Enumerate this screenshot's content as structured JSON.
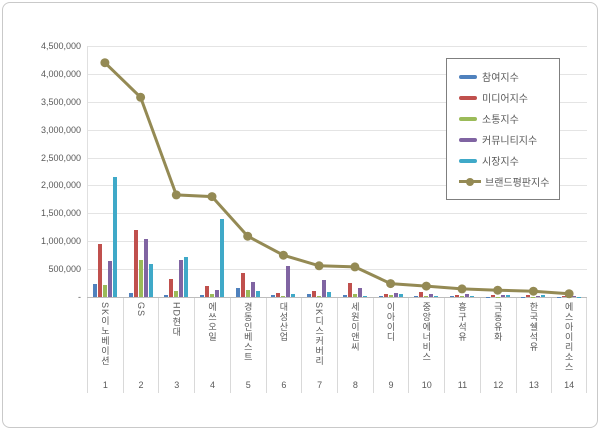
{
  "chart_data": {
    "type": "combo-bar-line",
    "title": "",
    "grid": true,
    "legend_position": "top-right",
    "categories": [
      "SK이노베이션",
      "GS",
      "HD현대",
      "에쓰오일",
      "경동인베스트",
      "대성산업",
      "SK디스커버리",
      "세원이앤씨",
      "이아이디",
      "중앙에너비스",
      "흥구석유",
      "극동유화",
      "한국쉘석유",
      "에스아이리소스"
    ],
    "ranks": [
      "1",
      "2",
      "3",
      "4",
      "5",
      "6",
      "7",
      "8",
      "9",
      "10",
      "11",
      "12",
      "13",
      "14"
    ],
    "bar_series": [
      {
        "key": "participation-index",
        "name": "참여지수",
        "color": "#4F81BD",
        "values": [
          230000,
          80000,
          40000,
          40000,
          160000,
          30000,
          50000,
          40000,
          15000,
          10000,
          10000,
          8000,
          8000,
          5000
        ]
      },
      {
        "key": "media-index",
        "name": "미디어지수",
        "color": "#C0504D",
        "values": [
          950000,
          1210000,
          320000,
          190000,
          430000,
          80000,
          100000,
          245000,
          60000,
          95000,
          35000,
          40000,
          30000,
          25000
        ]
      },
      {
        "key": "communication-index",
        "name": "소통지수",
        "color": "#9BBB59",
        "values": [
          220000,
          660000,
          100000,
          50000,
          130000,
          20000,
          20000,
          60000,
          40000,
          15000,
          15000,
          7000,
          6000,
          5000
        ]
      },
      {
        "key": "community-index",
        "name": "커뮤니티지수",
        "color": "#8064A2",
        "values": [
          640000,
          1040000,
          660000,
          120000,
          270000,
          560000,
          300000,
          170000,
          80000,
          55000,
          60000,
          35000,
          25000,
          20000
        ]
      },
      {
        "key": "market-index",
        "name": "시장지수",
        "color": "#3FA9C8",
        "values": [
          2160000,
          590000,
          710000,
          1400000,
          100000,
          60000,
          90000,
          25000,
          45000,
          20000,
          25000,
          32000,
          35000,
          5000
        ]
      }
    ],
    "line_series": {
      "key": "brand-reputation-index",
      "name": "브랜드평판지수",
      "color": "#948A54",
      "values": [
        4200000,
        3580000,
        1830000,
        1800000,
        1090000,
        750000,
        560000,
        540000,
        240000,
        195000,
        145000,
        122000,
        104000,
        60000
      ]
    },
    "y_axis": {
      "min": 0,
      "max": 4500000,
      "tick_interval": 500000,
      "ticks": [
        {
          "label": "4,500,000",
          "value": 4500000
        },
        {
          "label": "4,000,000",
          "value": 4000000
        },
        {
          "label": "3,500,000",
          "value": 3500000
        },
        {
          "label": "3,000,000",
          "value": 3000000
        },
        {
          "label": "2,500,000",
          "value": 2500000
        },
        {
          "label": "2,000,000",
          "value": 2000000
        },
        {
          "label": "1,500,000",
          "value": 1500000
        },
        {
          "label": "1,000,000",
          "value": 1000000
        },
        {
          "label": "500,000",
          "value": 500000
        },
        {
          "label": "-",
          "value": 0
        }
      ]
    }
  }
}
